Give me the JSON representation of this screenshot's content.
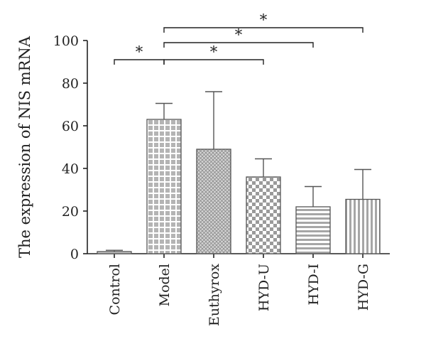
{
  "chart_data": {
    "type": "bar",
    "title": "",
    "xlabel": "",
    "ylabel": "The expression of NIS mRNA",
    "ylim": [
      0,
      100
    ],
    "yticks": [
      "0",
      "20",
      "40",
      "60",
      "80",
      "100"
    ],
    "categories": [
      "Control",
      "Model",
      "Euthyrox",
      "HYD-U",
      "HYD-I",
      "HYD-G"
    ],
    "values": [
      1,
      63,
      49,
      36,
      22,
      25.5
    ],
    "errors": [
      0.6,
      7.5,
      27,
      8.5,
      9.5,
      14
    ],
    "patterns": [
      "light-fill",
      "grid",
      "crosshatch",
      "checker",
      "horizontal-lines",
      "vertical-lines"
    ],
    "significance": [
      {
        "from": "Control",
        "to": "Model",
        "y": 91,
        "label": "*"
      },
      {
        "from": "Model",
        "to": "HYD-U",
        "y": 91,
        "label": "*"
      },
      {
        "from": "Model",
        "to": "HYD-I",
        "y": 99,
        "label": "*"
      },
      {
        "from": "Model",
        "to": "HYD-G",
        "y": 106,
        "label": "*"
      }
    ],
    "grid": false,
    "legend": "none"
  }
}
